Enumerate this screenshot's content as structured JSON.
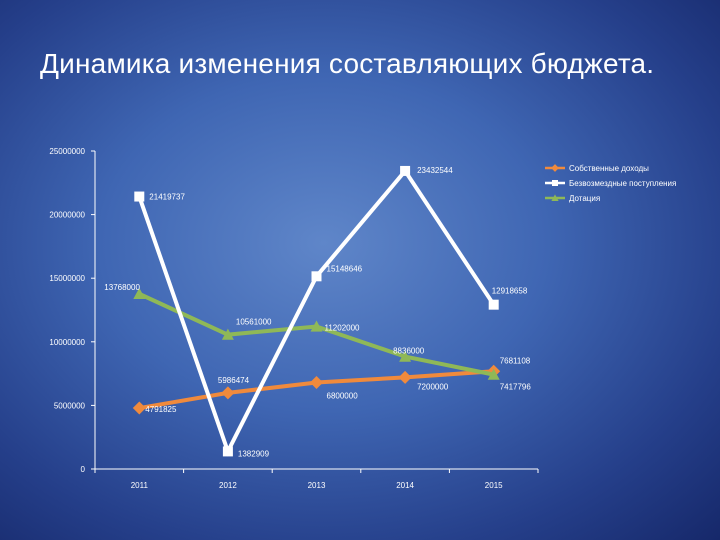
{
  "slide": {
    "title": "Динамика изменения составляющих бюджета."
  },
  "chart_data": {
    "type": "line",
    "categories": [
      "2011",
      "2012",
      "2013",
      "2014",
      "2015"
    ],
    "yticks": [
      "0",
      "5000000",
      "10000000",
      "15000000",
      "20000000",
      "25000000"
    ],
    "ylim": [
      0,
      25000000
    ],
    "grid": false,
    "legend_position": "top-right",
    "series": [
      {
        "name": "Собственные доходы",
        "color": "#f08a3c",
        "marker": "diamond",
        "values": [
          4791825,
          5986474,
          6800000,
          7200000,
          7681108
        ],
        "labels": [
          "4791825",
          "5986474",
          "6800000",
          "7200000",
          "7681108"
        ]
      },
      {
        "name": "Безвозмездные поступления",
        "color": "#ffffff",
        "marker": "square",
        "values": [
          21419737,
          1382909,
          15148646,
          23432544,
          12918658
        ],
        "labels": [
          "21419737",
          "1382909",
          "15148646",
          "23432544",
          "12918658"
        ]
      },
      {
        "name": "Дотация",
        "color": "#8fb857",
        "marker": "triangle",
        "values": [
          13768000,
          10561000,
          11202000,
          8836000,
          7417796
        ],
        "labels": [
          "13768000",
          "10561000",
          "11202000",
          "8836000",
          "7417796"
        ]
      }
    ]
  }
}
